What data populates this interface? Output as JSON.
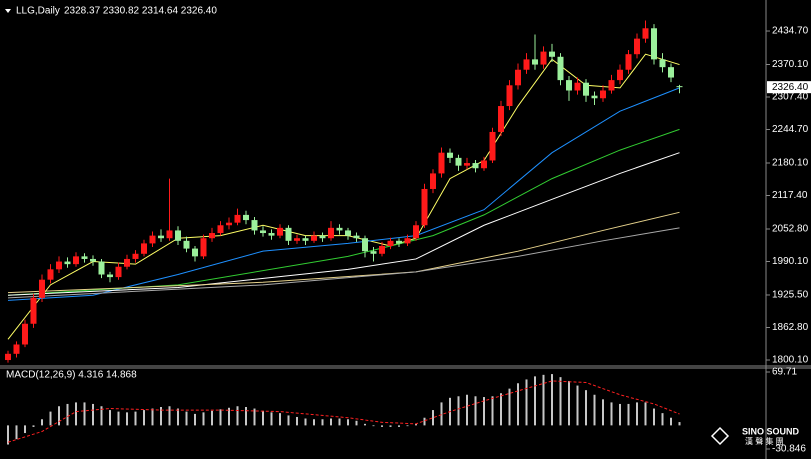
{
  "header": {
    "symbol": "LLG,Daily",
    "ohlc": "2328.37 2330.82 2314.64 2326.40"
  },
  "logo": {
    "name": "SINO SOUND",
    "sub": "漢 聲 集 團"
  },
  "chart_data": [
    {
      "type": "candlestick",
      "up_color": "#ff1a1a",
      "down_color": "#9cf09c",
      "ylim": [
        1788.5,
        2484.9
      ],
      "yticks": [
        {
          "value": 2434.7,
          "label": "2434.70"
        },
        {
          "value": 2370.1,
          "label": "2370.10"
        },
        {
          "value": 2307.4,
          "label": "2307.40"
        },
        {
          "value": 2244.7,
          "label": "2244.70"
        },
        {
          "value": 2180.1,
          "label": "2180.10"
        },
        {
          "value": 2117.4,
          "label": "2117.40"
        },
        {
          "value": 2052.8,
          "label": "2052.80"
        },
        {
          "value": 1990.1,
          "label": "1990.10"
        },
        {
          "value": 1925.5,
          "label": "1925.50"
        },
        {
          "value": 1862.8,
          "label": "1862.80"
        },
        {
          "value": 1800.1,
          "label": "1800.10"
        }
      ],
      "price_marker": {
        "value": 2326.4,
        "label": "2326.40"
      },
      "candles": [
        [
          1800,
          1818,
          1795,
          1812
        ],
        [
          1812,
          1836,
          1805,
          1830
        ],
        [
          1830,
          1878,
          1825,
          1870
        ],
        [
          1870,
          1928,
          1862,
          1920
        ],
        [
          1920,
          1965,
          1912,
          1955
        ],
        [
          1955,
          1985,
          1948,
          1975
        ],
        [
          1975,
          2000,
          1968,
          1990
        ],
        [
          1990,
          1998,
          1978,
          1985
        ],
        [
          1985,
          2008,
          1980,
          2000
        ],
        [
          2000,
          2006,
          1988,
          1995
        ],
        [
          1995,
          2002,
          1982,
          1990
        ],
        [
          1990,
          1995,
          1958,
          1965
        ],
        [
          1965,
          1970,
          1950,
          1960
        ],
        [
          1960,
          1988,
          1955,
          1980
        ],
        [
          1980,
          2003,
          1975,
          1995
        ],
        [
          1995,
          2012,
          1988,
          2005
        ],
        [
          2005,
          2032,
          2000,
          2025
        ],
        [
          2025,
          2048,
          2018,
          2040
        ],
        [
          2040,
          2052,
          2028,
          2035
        ],
        [
          2035,
          2150,
          2030,
          2050
        ],
        [
          2050,
          2058,
          2022,
          2030
        ],
        [
          2030,
          2038,
          2008,
          2015
        ],
        [
          2015,
          2020,
          1990,
          2000
        ],
        [
          2000,
          2042,
          1995,
          2035
        ],
        [
          2035,
          2055,
          2028,
          2045
        ],
        [
          2045,
          2068,
          2040,
          2060
        ],
        [
          2060,
          2075,
          2052,
          2065
        ],
        [
          2065,
          2092,
          2060,
          2080
        ],
        [
          2080,
          2088,
          2062,
          2070
        ],
        [
          2070,
          2076,
          2042,
          2050
        ],
        [
          2050,
          2058,
          2038,
          2045
        ],
        [
          2045,
          2052,
          2032,
          2040
        ],
        [
          2040,
          2062,
          2035,
          2055
        ],
        [
          2055,
          2060,
          2022,
          2030
        ],
        [
          2030,
          2042,
          2024,
          2035
        ],
        [
          2035,
          2040,
          2022,
          2030
        ],
        [
          2030,
          2048,
          2026,
          2040
        ],
        [
          2040,
          2046,
          2028,
          2035
        ],
        [
          2035,
          2068,
          2030,
          2055
        ],
        [
          2055,
          2062,
          2042,
          2050
        ],
        [
          2050,
          2055,
          2032,
          2040
        ],
        [
          2040,
          2046,
          2028,
          2035
        ],
        [
          2035,
          2040,
          1998,
          2010
        ],
        [
          2010,
          2018,
          1990,
          2005
        ],
        [
          2005,
          2028,
          2000,
          2020
        ],
        [
          2020,
          2036,
          2014,
          2030
        ],
        [
          2030,
          2035,
          2018,
          2025
        ],
        [
          2025,
          2042,
          2020,
          2035
        ],
        [
          2035,
          2068,
          2030,
          2060
        ],
        [
          2060,
          2140,
          2055,
          2130
        ],
        [
          2130,
          2168,
          2122,
          2160
        ],
        [
          2160,
          2210,
          2152,
          2200
        ],
        [
          2200,
          2208,
          2180,
          2190
        ],
        [
          2190,
          2196,
          2165,
          2175
        ],
        [
          2175,
          2190,
          2168,
          2180
        ],
        [
          2180,
          2186,
          2162,
          2170
        ],
        [
          2170,
          2192,
          2165,
          2185
        ],
        [
          2185,
          2248,
          2180,
          2240
        ],
        [
          2240,
          2300,
          2232,
          2290
        ],
        [
          2290,
          2340,
          2282,
          2330
        ],
        [
          2330,
          2372,
          2322,
          2360
        ],
        [
          2360,
          2392,
          2352,
          2380
        ],
        [
          2380,
          2428,
          2360,
          2370
        ],
        [
          2370,
          2405,
          2362,
          2395
        ],
        [
          2395,
          2410,
          2375,
          2385
        ],
        [
          2385,
          2392,
          2330,
          2340
        ],
        [
          2340,
          2348,
          2300,
          2320
        ],
        [
          2320,
          2345,
          2312,
          2335
        ],
        [
          2335,
          2342,
          2298,
          2310
        ],
        [
          2310,
          2318,
          2292,
          2305
        ],
        [
          2305,
          2330,
          2298,
          2320
        ],
        [
          2320,
          2350,
          2314,
          2340
        ],
        [
          2340,
          2370,
          2332,
          2360
        ],
        [
          2360,
          2398,
          2352,
          2390
        ],
        [
          2390,
          2430,
          2382,
          2420
        ],
        [
          2420,
          2455,
          2412,
          2440
        ],
        [
          2440,
          2448,
          2370,
          2380
        ],
        [
          2380,
          2392,
          2355,
          2365
        ],
        [
          2365,
          2372,
          2336,
          2345
        ],
        [
          2328.37,
          2330.82,
          2314.64,
          2326.4
        ]
      ],
      "lines": [
        {
          "color": "#ffff66",
          "x": [
            0,
            5,
            10,
            15,
            20,
            25,
            30,
            35,
            40,
            45,
            48,
            52,
            56,
            60,
            64,
            68,
            72,
            75,
            79
          ],
          "values": [
            1840,
            1945,
            1990,
            1985,
            2035,
            2040,
            2060,
            2040,
            2040,
            2020,
            2035,
            2150,
            2185,
            2290,
            2380,
            2330,
            2325,
            2390,
            2370
          ]
        },
        {
          "color": "#1e90ff",
          "x": [
            0,
            10,
            20,
            30,
            40,
            48,
            56,
            64,
            72,
            79
          ],
          "values": [
            1915,
            1925,
            1965,
            2010,
            2025,
            2040,
            2090,
            2200,
            2280,
            2325
          ]
        },
        {
          "color": "#32cd32",
          "x": [
            0,
            20,
            40,
            50,
            56,
            64,
            72,
            79
          ],
          "values": [
            1925,
            1945,
            2000,
            2040,
            2080,
            2150,
            2205,
            2245
          ]
        },
        {
          "color": "#ffffff",
          "x": [
            0,
            20,
            40,
            48,
            56,
            64,
            72,
            79
          ],
          "values": [
            1925,
            1940,
            1975,
            1995,
            2060,
            2110,
            2160,
            2200
          ]
        },
        {
          "color": "#e6d28c",
          "x": [
            0,
            30,
            48,
            60,
            70,
            79
          ],
          "values": [
            1930,
            1950,
            1970,
            2010,
            2050,
            2085
          ]
        },
        {
          "color": "#a9a9a9",
          "x": [
            0,
            30,
            48,
            60,
            70,
            79
          ],
          "values": [
            1920,
            1945,
            1970,
            2000,
            2030,
            2055
          ]
        }
      ]
    },
    {
      "type": "macd",
      "title": "MACD(12,26,9) 4.316 14.868",
      "ylim": [
        -30.846,
        69.71
      ],
      "yticks": [
        69.71,
        -30.846
      ],
      "histogram": {
        "color": "#c8c8c8",
        "values": [
          -25,
          -18,
          -10,
          -2,
          8,
          18,
          25,
          28,
          30,
          30,
          28,
          25,
          20,
          18,
          17,
          18,
          20,
          22,
          24,
          25,
          22,
          18,
          15,
          17,
          19,
          21,
          23,
          25,
          24,
          22,
          19,
          17,
          16,
          13,
          11,
          9,
          8,
          8,
          9,
          9,
          8,
          6,
          2,
          -1,
          -2,
          -2,
          -2,
          -1,
          2,
          10,
          20,
          30,
          36,
          38,
          40,
          38,
          37,
          38,
          42,
          48,
          55,
          60,
          64,
          66,
          67,
          63,
          58,
          52,
          46,
          40,
          34,
          30,
          28,
          28,
          30,
          30,
          22,
          16,
          10,
          4.316
        ]
      },
      "signal": {
        "color": "#ff2020",
        "x": [
          0,
          4,
          8,
          12,
          18,
          25,
          32,
          40,
          44,
          48,
          52,
          56,
          60,
          64,
          68,
          72,
          76,
          79
        ],
        "values": [
          -22,
          -8,
          18,
          22,
          20,
          20,
          18,
          10,
          4,
          2,
          18,
          32,
          45,
          58,
          56,
          40,
          28,
          14.868
        ]
      }
    }
  ]
}
